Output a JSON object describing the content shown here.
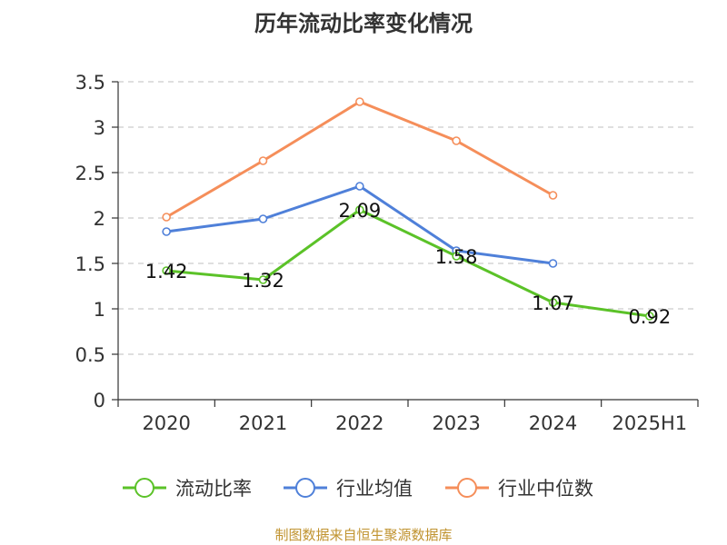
{
  "chart_data": {
    "type": "line",
    "title": "历年流动比率变化情况",
    "source": "制图数据来自恒生聚源数据库",
    "categories": [
      "2020",
      "2021",
      "2022",
      "2023",
      "2024",
      "2025H1"
    ],
    "ylim": [
      0,
      3.5
    ],
    "yticks": [
      "0",
      "0.5",
      "1",
      "1.5",
      "2",
      "2.5",
      "3",
      "3.5"
    ],
    "ytick_values": [
      0,
      0.5,
      1,
      1.5,
      2,
      2.5,
      3,
      3.5
    ],
    "grid": true,
    "legend_position": "bottom",
    "series": [
      {
        "name": "流动比率",
        "color": "#5bc228",
        "values": [
          1.42,
          1.32,
          2.09,
          1.58,
          1.07,
          0.92
        ],
        "labels": [
          "1.42",
          "1.32",
          "2.09",
          "1.58",
          "1.07",
          "0.92"
        ]
      },
      {
        "name": "行业均值",
        "color": "#4f80d9",
        "values": [
          1.85,
          1.99,
          2.35,
          1.64,
          1.5,
          null
        ]
      },
      {
        "name": "行业中位数",
        "color": "#f58e5a",
        "values": [
          2.01,
          2.63,
          3.28,
          2.85,
          2.25,
          null
        ]
      }
    ]
  }
}
